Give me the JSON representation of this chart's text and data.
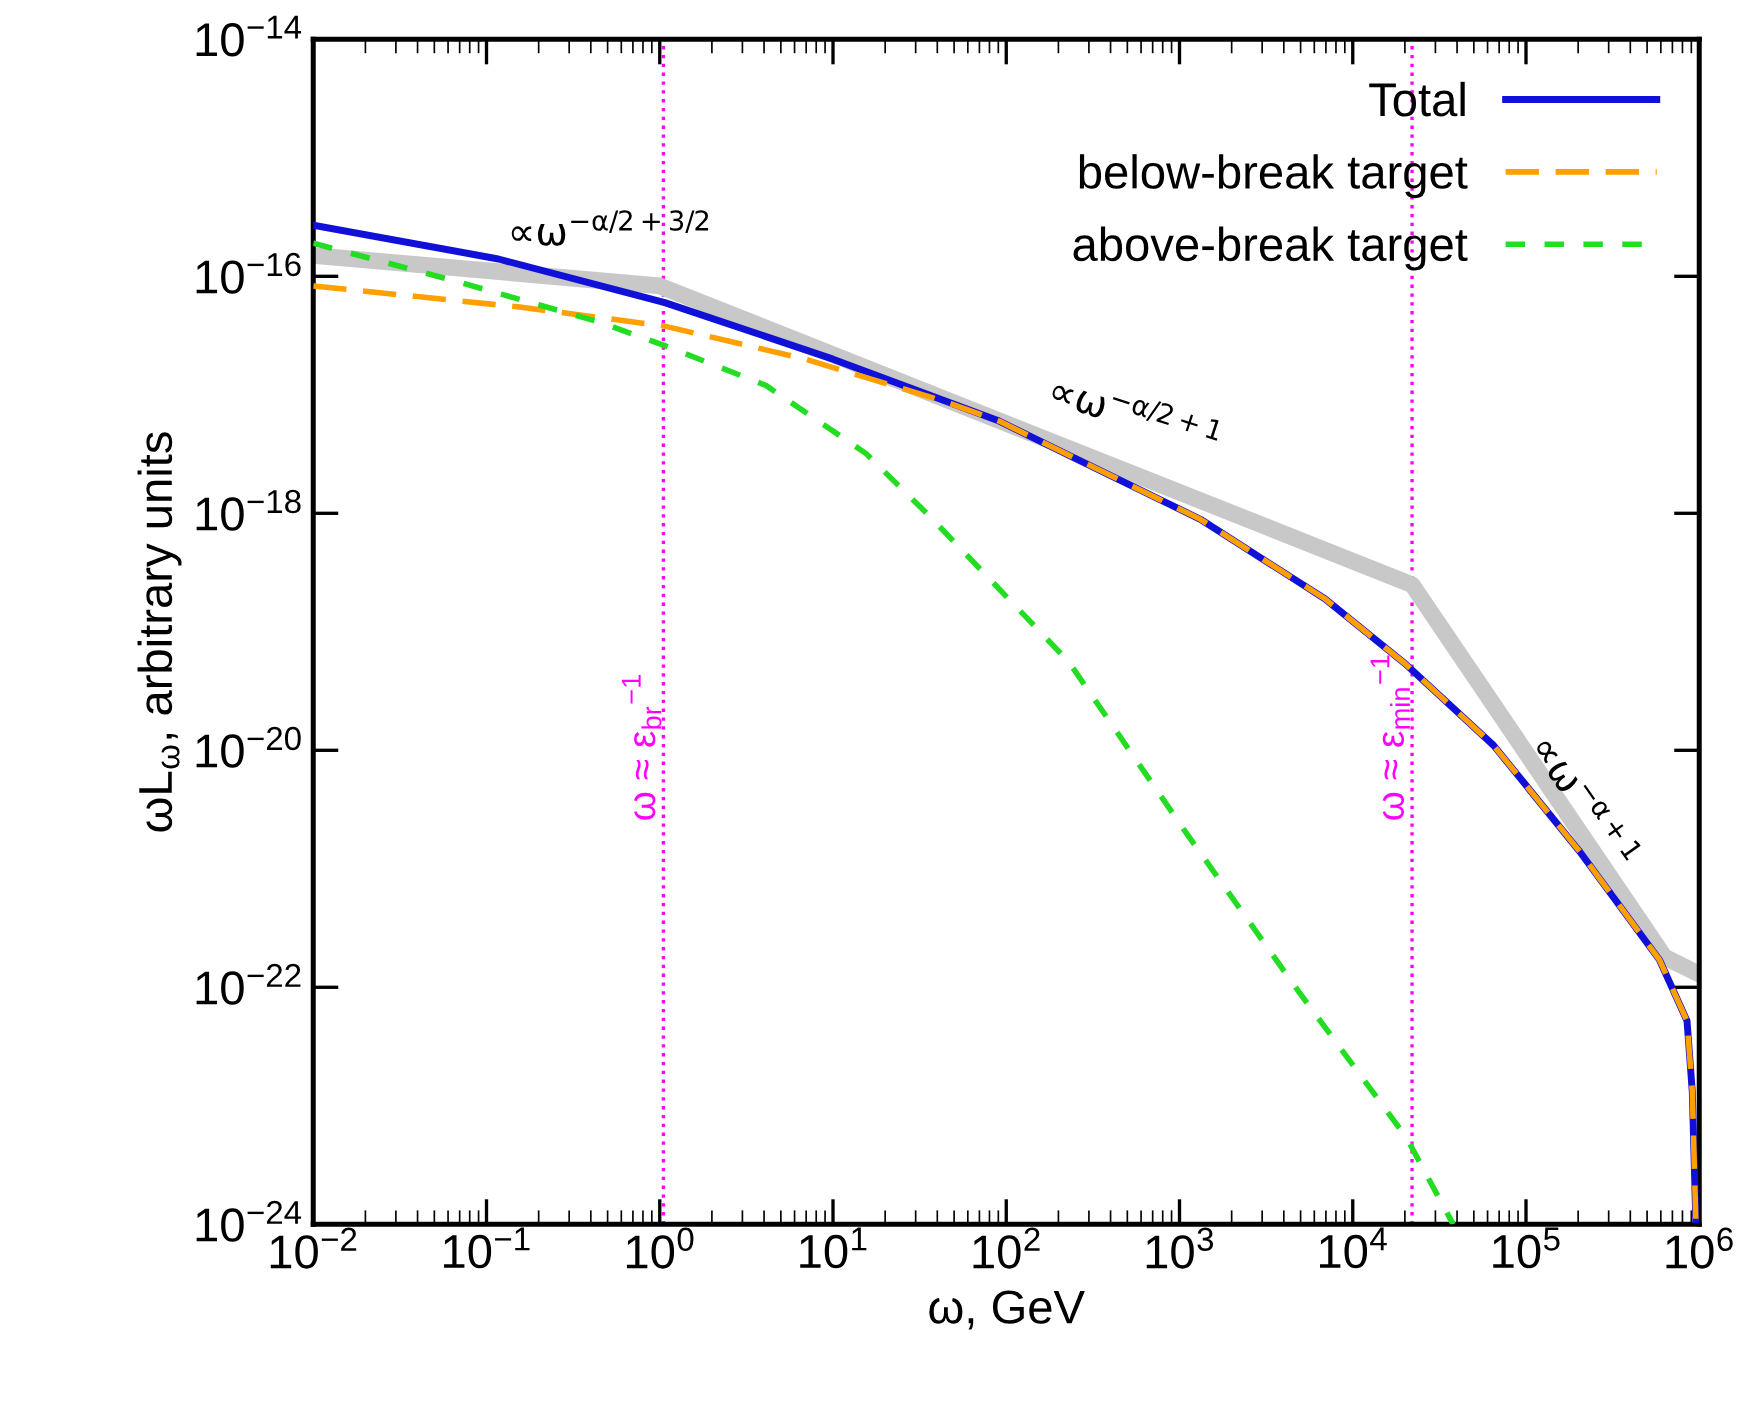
{
  "chart_data": {
    "type": "line",
    "xlabel": "ω, GeV",
    "ylabel": "ωL$_{ω}$, arbitrary units",
    "log": "xy",
    "xlim": [
      0.01,
      1000000
    ],
    "ylim": [
      1e-24,
      1e-14
    ],
    "xticks": [
      {
        "value": 0.01,
        "label": "10$^{−2}$"
      },
      {
        "value": 0.1,
        "label": "10$^{−1}$"
      },
      {
        "value": 1,
        "label": "10$^{0}$"
      },
      {
        "value": 10,
        "label": "10$^{1}$"
      },
      {
        "value": 100,
        "label": "10$^{2}$"
      },
      {
        "value": 1000,
        "label": "10$^{3}$"
      },
      {
        "value": 10000,
        "label": "10$^{4}$"
      },
      {
        "value": 100000,
        "label": "10$^{5}$"
      },
      {
        "value": 1000000,
        "label": "10$^{6}$"
      }
    ],
    "yticks": [
      {
        "value": 1e-24,
        "label": "10$^{−24}$"
      },
      {
        "value": 1e-22,
        "label": "10$^{−22}$"
      },
      {
        "value": 1e-20,
        "label": "10$^{−20}$"
      },
      {
        "value": 1e-18,
        "label": "10$^{−18}$"
      },
      {
        "value": 1e-16,
        "label": "10$^{−16}$"
      },
      {
        "value": 1e-14,
        "label": "10$^{−14}$"
      }
    ],
    "grid": false,
    "legend": "top right",
    "marker": "none",
    "series": [
      {
        "color": "#c8c8c8",
        "line_style": "solid",
        "x": [
          0.01,
          1.0,
          22000,
          630000,
          990000
        ],
        "values": [
          1.5e-16,
          8.3e-17,
          2.5e-19,
          1.8e-22,
          1.3e-22
        ]
      },
      {
        "name": "Total",
        "color": "#1010d8",
        "line_style": "solid",
        "x": [
          0.01,
          0.117,
          1.07,
          10,
          91,
          240,
          1320,
          6900,
          20000,
          65000,
          204000,
          590000,
          850000,
          912000,
          955000
        ],
        "values": [
          2.7e-16,
          1.4e-16,
          6e-17,
          2e-17,
          6e-18,
          3e-18,
          8.9e-19,
          1.9e-19,
          5.4e-20,
          1.1e-20,
          1.4e-21,
          1.7e-22,
          5.2e-23,
          1.3e-23,
          1.1e-24
        ]
      },
      {
        "name": "below-break target",
        "color": "#ffa000",
        "line_style": "dashed",
        "x": [
          0.01,
          0.155,
          1.07,
          6.9,
          41,
          91,
          240,
          1320,
          6900,
          20000,
          65000,
          204000,
          590000,
          850000,
          912000,
          955000
        ],
        "values": [
          8.3e-17,
          5.5e-17,
          3.8e-17,
          2e-17,
          9.1e-18,
          6e-18,
          3e-18,
          8.9e-19,
          1.9e-19,
          5.4e-20,
          1.1e-20,
          1.4e-21,
          1.7e-22,
          5.2e-23,
          1.3e-23,
          1.1e-24
        ]
      },
      {
        "name": "above-break target",
        "color": "#22dd22",
        "line_style": "dashed",
        "x": [
          0.01,
          0.063,
          0.45,
          1.07,
          4.1,
          15.5,
          36,
          229,
          1070,
          4900,
          20400,
          38000
        ],
        "values": [
          1.9e-16,
          9.3e-17,
          4.1e-17,
          2.6e-17,
          1.2e-17,
          3.2e-18,
          9.5e-19,
          5.6e-20,
          2.1e-21,
          9.1e-23,
          5.4e-24,
          1e-24
        ]
      }
    ],
    "ref_lines": [
      {
        "axis": "x",
        "value": 1.05,
        "label": "ω ≈ ε$_{br}$$^{−1}$",
        "color": "#ff00ff",
        "line_style": "dotted"
      },
      {
        "axis": "x",
        "value": 22000,
        "label": "ω ≈ ε$_{min}$$^{−1}$",
        "color": "#ff00ff",
        "line_style": "dotted"
      }
    ],
    "annotations": [
      "∝ω$^{−α/2+3/2}$",
      "∝ω$^{−α/2+1}$",
      "∝ω$^{−α+1}$"
    ]
  }
}
